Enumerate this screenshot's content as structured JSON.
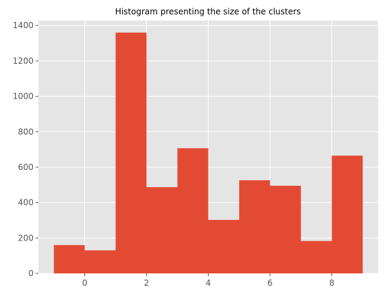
{
  "chart_data": {
    "type": "bar",
    "title": "Histogram presenting the size of the clusters",
    "xlabel": "",
    "ylabel": "",
    "bins": [
      {
        "x0": -1,
        "x1": 0,
        "value": 160
      },
      {
        "x0": 0,
        "x1": 1,
        "value": 130
      },
      {
        "x0": 1,
        "x1": 2,
        "value": 1360
      },
      {
        "x0": 2,
        "x1": 3,
        "value": 487
      },
      {
        "x0": 3,
        "x1": 4,
        "value": 707
      },
      {
        "x0": 4,
        "x1": 5,
        "value": 302
      },
      {
        "x0": 5,
        "x1": 6,
        "value": 526
      },
      {
        "x0": 6,
        "x1": 7,
        "value": 495
      },
      {
        "x0": 7,
        "x1": 8,
        "value": 183
      },
      {
        "x0": 8,
        "x1": 9,
        "value": 665
      }
    ],
    "xlim": [
      -1.5,
      9.5
    ],
    "ylim": [
      0,
      1428
    ],
    "xticks": [
      "0",
      "2",
      "4",
      "6",
      "8"
    ],
    "yticks": [
      "0",
      "200",
      "400",
      "600",
      "800",
      "1000",
      "1200",
      "1400"
    ],
    "grid": true,
    "colors": {
      "bar": "#E24A33",
      "background": "#E5E5E5",
      "grid": "#FFFFFF",
      "tick_text": "#555555"
    }
  }
}
